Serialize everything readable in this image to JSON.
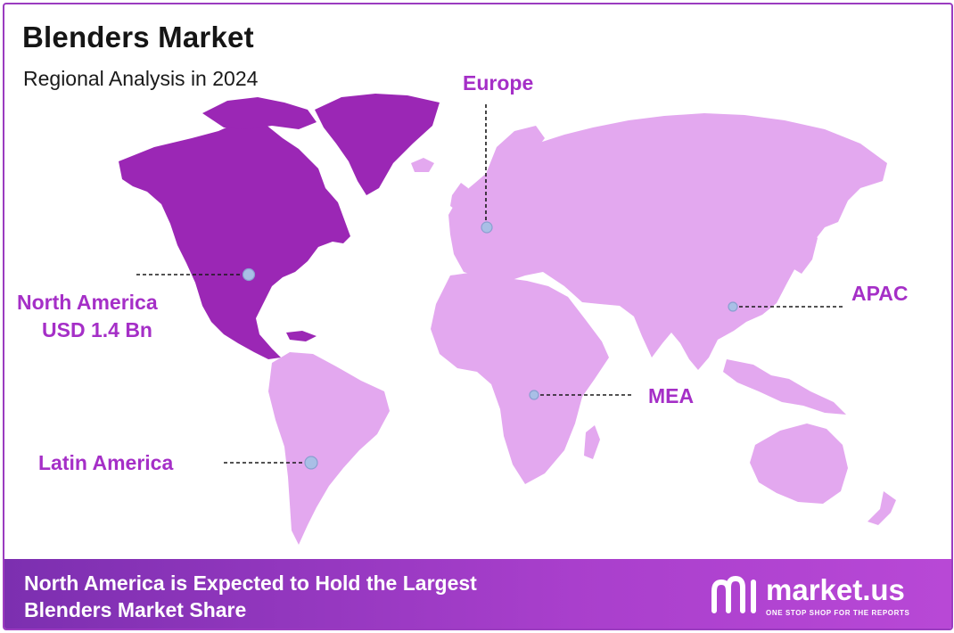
{
  "header": {
    "title": "Blenders Market",
    "subtitle": "Regional Analysis in 2024"
  },
  "colors": {
    "highlight_region": "#9b27b5",
    "other_regions": "#e3a8ef",
    "label": "#a52fc7",
    "marker": "#a9bfe6",
    "footer": "#9b3cc0"
  },
  "regions": [
    {
      "id": "north-america",
      "name": "North America",
      "value": "USD 1.4 Bn",
      "highlighted": true
    },
    {
      "id": "europe",
      "name": "Europe"
    },
    {
      "id": "apac",
      "name": "APAC"
    },
    {
      "id": "mea",
      "name": "MEA"
    },
    {
      "id": "latin-america",
      "name": "Latin America"
    }
  ],
  "footer": {
    "line1": "North America is Expected to Hold the Largest",
    "line2": "Blenders Market Share",
    "brand_name": "market.us",
    "brand_tagline": "ONE STOP SHOP FOR THE REPORTS"
  }
}
